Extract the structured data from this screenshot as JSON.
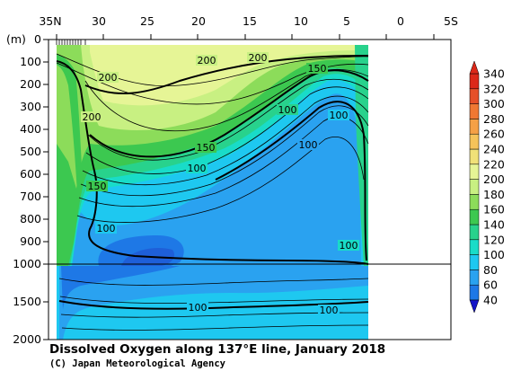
{
  "chart_data": {
    "type": "heatmap",
    "title": "Dissolved Oxygen along 137°E line, January 2018",
    "credit": "(C) Japan Meteorological Agency",
    "x_ticks": [
      "35N",
      "30",
      "25",
      "20",
      "15",
      "10",
      "5",
      "0",
      "5S"
    ],
    "y_unit": "(m)",
    "y_ticks_upper": [
      "0",
      "100",
      "200",
      "300",
      "400",
      "500",
      "600",
      "700",
      "800",
      "900",
      "1000"
    ],
    "y_ticks_lower": [
      "1500",
      "2000"
    ],
    "colorbar_labels": [
      "40",
      "60",
      "80",
      "100",
      "120",
      "140",
      "160",
      "180",
      "200",
      "220",
      "240",
      "260",
      "280",
      "300",
      "320",
      "340"
    ],
    "contour_labels": [
      "200",
      "200",
      "200",
      "200",
      "150",
      "100",
      "100",
      "150",
      "150",
      "100",
      "100",
      "100",
      "100",
      "100",
      "100"
    ],
    "colors": {
      "c40": "#1e5fd8",
      "c60": "#1e78e6",
      "c80": "#2aa2f0",
      "c100": "#1ec8f0",
      "c120": "#19dcc8",
      "c140": "#28d28c",
      "c160": "#3cc850",
      "c180": "#8cdc5a",
      "c200": "#c8f082",
      "c220": "#e6f596",
      "c240": "#f0e178",
      "c260": "#f5c35a",
      "c280": "#f5a046",
      "c300": "#f07832",
      "c320": "#e65028",
      "c340": "#dc2819"
    }
  }
}
